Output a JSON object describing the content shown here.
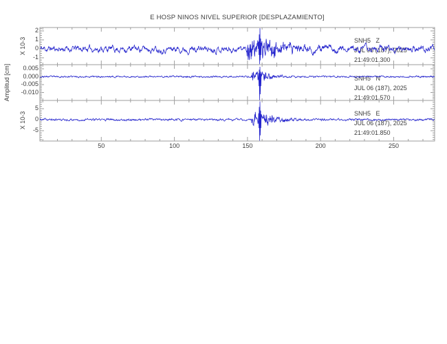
{
  "title": "E HOSP NINOS NIVEL SUPERIOR [DESPLAZAMIENTO]",
  "colors": {
    "trace": "#2525cd",
    "frame": "#9e9e9e",
    "text": "#3d3d3d"
  },
  "chart_data": {
    "type": "line",
    "title": "E HOSP NINOS NIVEL SUPERIOR [DESPLAZAMIENTO]",
    "xlabel": "",
    "ylabel": "Amplitud [cm]",
    "xlim": [
      8,
      278
    ],
    "xticks": [
      50,
      100,
      150,
      200,
      250
    ],
    "x_minor_step": 10,
    "grid": false,
    "legend": "none",
    "description": "Three-component seismogram; impulsive event arrival near t=159 s on all channels",
    "series": [
      {
        "station": "SNH5",
        "channel": "Z",
        "station_channel": "SNH5   Z",
        "date_label": "JUL 06 (187), 2025",
        "time_label": "21:49:01.300",
        "scale_label": "X 10-3",
        "ylim": [
          -1.77,
          2.38
        ],
        "ytick_values": [
          2,
          1,
          0,
          -1
        ],
        "ytick_labels": [
          "2",
          "1",
          "0",
          "-1"
        ],
        "y_minor_step": 0.25,
        "synth": {
          "seed": 11,
          "smooth": 0.8,
          "noise_amp": 0.5,
          "burst_start": 149,
          "burst_end": 170,
          "burst_factor": 2.6,
          "coda_end": 232,
          "spike_time": 158.6,
          "spike_up": 2.3,
          "spike_down": -1.72
        }
      },
      {
        "station": "SNH5",
        "channel": "N",
        "station_channel": "SNH5   N",
        "date_label": "JUL 06 (187), 2025",
        "time_label": "21:49:01.570",
        "scale_label": "",
        "ylim": [
          -0.015,
          0.0076
        ],
        "ytick_values": [
          0.005,
          0,
          -0.005,
          -0.01
        ],
        "ytick_labels": [
          "0.005",
          "0.000",
          "-0.005",
          "-0.010"
        ],
        "y_minor_step": 0.001,
        "synth": {
          "seed": 23,
          "smooth": 0.62,
          "noise_amp": 0.00045,
          "burst_start": 152,
          "burst_end": 166,
          "burst_factor": 5.5,
          "coda_end": 192,
          "spike_time": 158.6,
          "spike_up": 0.0063,
          "spike_down": -0.0148
        }
      },
      {
        "station": "SNH5",
        "channel": "E",
        "station_channel": "SNH5   E",
        "date_label": "JUL 06 (187), 2025",
        "time_label": "21:49:01.850",
        "scale_label": "X 10-3",
        "ylim": [
          -9.7,
          8.75
        ],
        "ytick_values": [
          5,
          0,
          -5
        ],
        "ytick_labels": [
          "5",
          "0",
          "-5"
        ],
        "y_minor_step": 1,
        "synth": {
          "seed": 37,
          "smooth": 0.66,
          "noise_amp": 0.46,
          "burst_start": 152,
          "burst_end": 168,
          "burst_factor": 6,
          "coda_end": 196,
          "spike_time": 158.6,
          "spike_up": 8.3,
          "spike_down": -9.5
        }
      }
    ]
  }
}
